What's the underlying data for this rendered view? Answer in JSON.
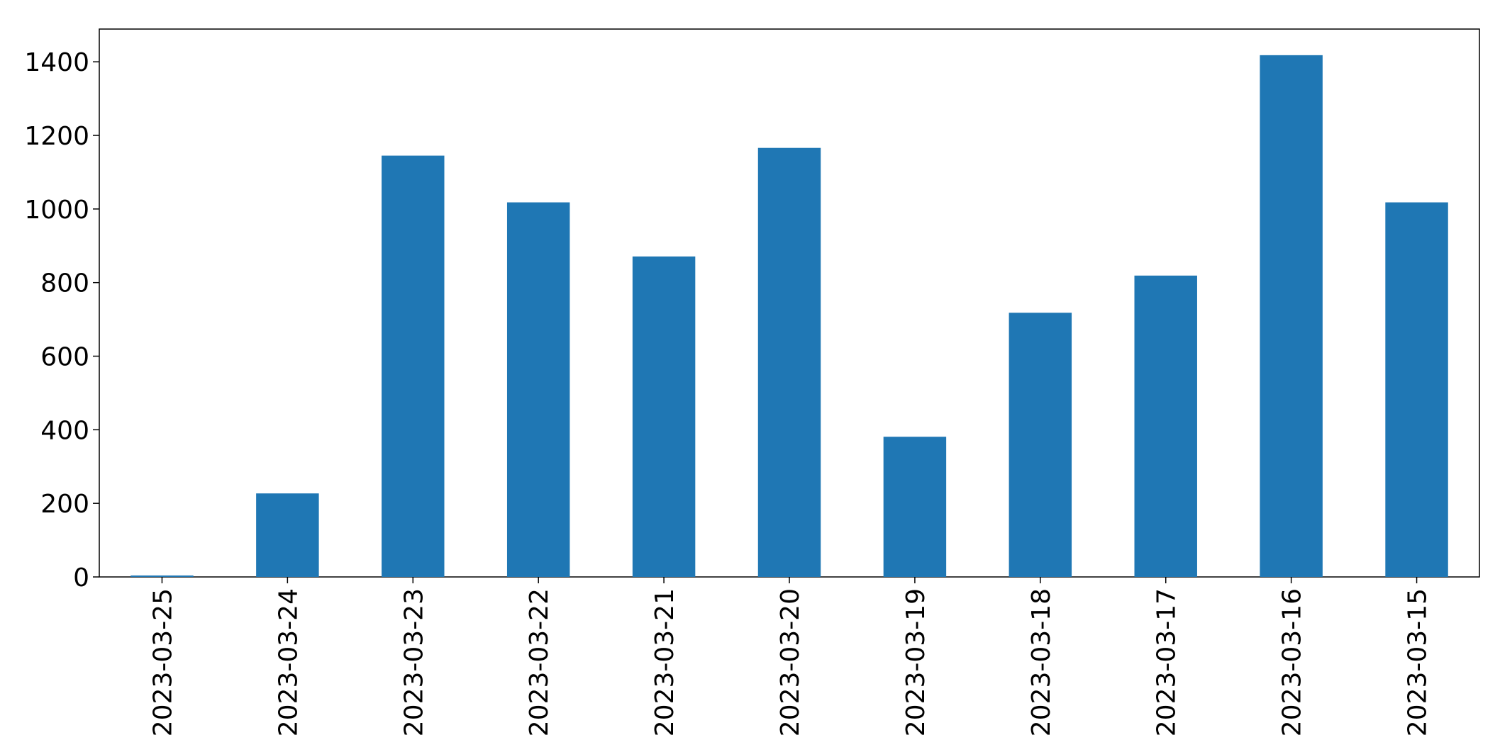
{
  "chart_data": {
    "type": "bar",
    "categories": [
      "2023-03-25",
      "2023-03-24",
      "2023-03-23",
      "2023-03-22",
      "2023-03-21",
      "2023-03-20",
      "2023-03-19",
      "2023-03-18",
      "2023-03-17",
      "2023-03-16",
      "2023-03-15"
    ],
    "values": [
      4,
      227,
      1145,
      1018,
      871,
      1166,
      381,
      718,
      819,
      1418,
      1018
    ],
    "color": "#1f77b4",
    "ylim": [
      0,
      1489
    ],
    "yticks": [
      0,
      200,
      400,
      600,
      800,
      1000,
      1200,
      1400
    ],
    "grid": false
  }
}
